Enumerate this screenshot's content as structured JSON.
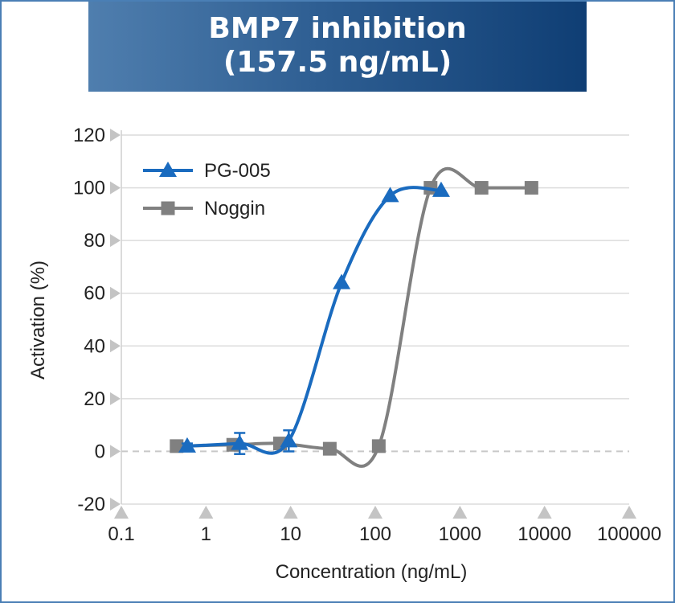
{
  "chart_data": {
    "type": "line",
    "title_line1": "BMP7 inhibition",
    "title_line2": "(157.5 ng/mL)",
    "xlabel": "Concentration (ng/mL)",
    "ylabel": "Activation (%)",
    "x_scale": "log",
    "xlim": [
      0.1,
      100000
    ],
    "ylim": [
      -20,
      120
    ],
    "x_ticks": [
      "0.1",
      "1",
      "10",
      "100",
      "1000",
      "10000",
      "100000"
    ],
    "y_ticks": [
      "120",
      "100",
      "80",
      "60",
      "40",
      "20",
      "0",
      "-20"
    ],
    "grid": true,
    "legend_position": "top-left",
    "series": [
      {
        "name": "PG-005",
        "color": "#1a6bbf",
        "marker": "triangle",
        "points": [
          {
            "x": 0.6,
            "y": 2,
            "err": 1
          },
          {
            "x": 2.5,
            "y": 3,
            "err": 4
          },
          {
            "x": 9.5,
            "y": 4,
            "err": 4
          },
          {
            "x": 40,
            "y": 64,
            "err": 0
          },
          {
            "x": 150,
            "y": 97,
            "err": 0
          },
          {
            "x": 600,
            "y": 99,
            "err": 0
          }
        ]
      },
      {
        "name": "Noggin",
        "color": "#808080",
        "marker": "square",
        "points": [
          {
            "x": 0.45,
            "y": 2
          },
          {
            "x": 2.1,
            "y": 2.5
          },
          {
            "x": 7.5,
            "y": 3
          },
          {
            "x": 29,
            "y": 1
          },
          {
            "x": 110,
            "y": 2
          },
          {
            "x": 450,
            "y": 100
          },
          {
            "x": 1800,
            "y": 100
          },
          {
            "x": 7000,
            "y": 100
          }
        ]
      }
    ]
  }
}
